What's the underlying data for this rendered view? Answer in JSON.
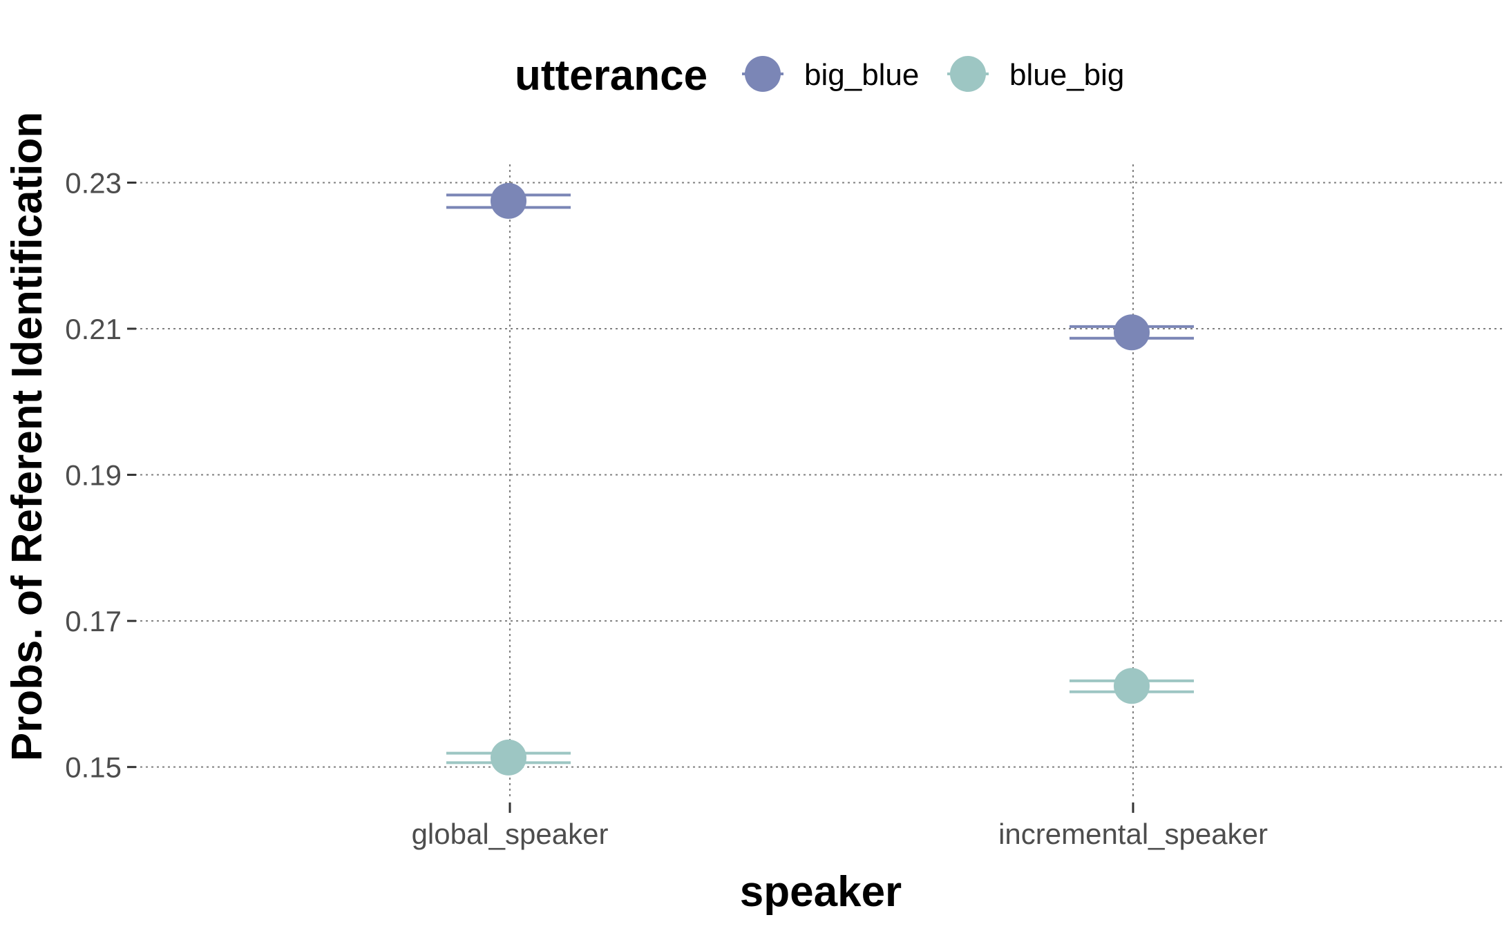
{
  "chart_data": {
    "type": "scatter",
    "xlabel": "speaker",
    "ylabel": "Probs. of Referent Identification",
    "categories": [
      "global_speaker",
      "incremental_speaker"
    ],
    "yticks": [
      "0.15",
      "0.17",
      "0.19",
      "0.21",
      "0.23"
    ],
    "ylim": [
      0.1425,
      0.2325
    ],
    "grid": true,
    "legend": {
      "title": "utterance",
      "position": "top"
    },
    "series": [
      {
        "name": "big_blue",
        "color": "#7b86b6",
        "values": [
          0.2275,
          0.2095
        ],
        "ci_low": [
          0.2266,
          0.2087
        ],
        "ci_high": [
          0.2283,
          0.2103
        ]
      },
      {
        "name": "blue_big",
        "color": "#9dc6c3",
        "values": [
          0.1513,
          0.1611
        ],
        "ci_low": [
          0.1506,
          0.1603
        ],
        "ci_high": [
          0.1519,
          0.1618
        ]
      }
    ]
  }
}
